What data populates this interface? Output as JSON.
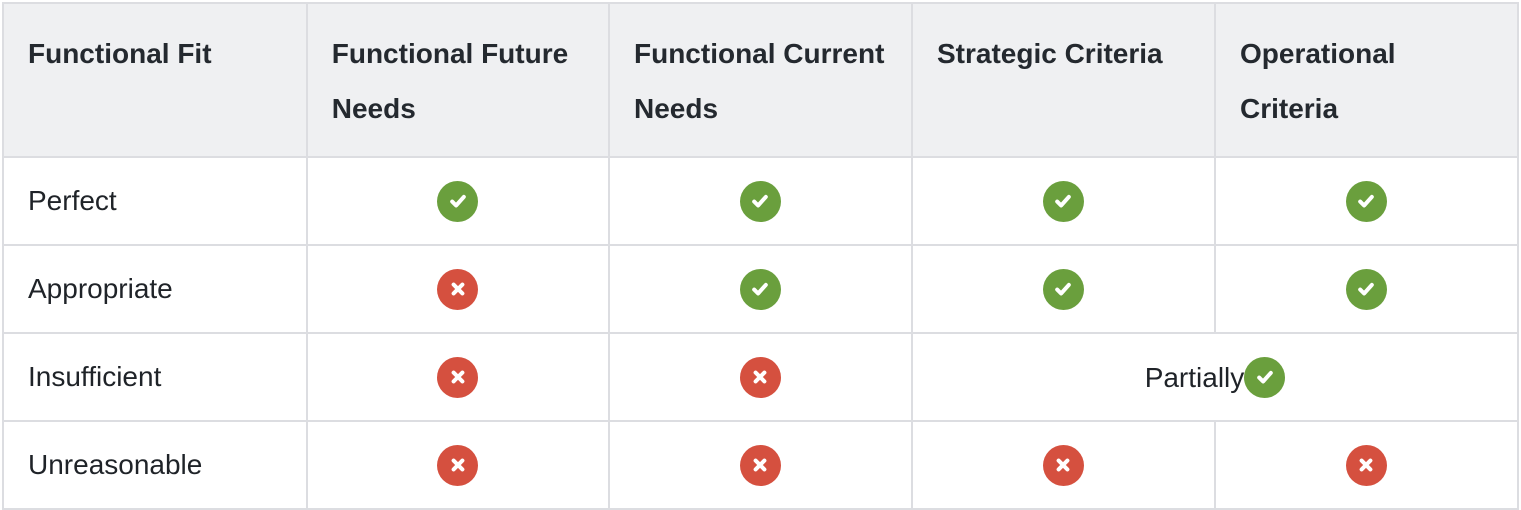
{
  "table": {
    "columns": [
      {
        "label": "Functional Fit"
      },
      {
        "label": "Functional Future Needs"
      },
      {
        "label": "Functional Current Needs"
      },
      {
        "label": "Strategic Criteria"
      },
      {
        "label": "Operational Criteria"
      }
    ],
    "rows": [
      {
        "label": "Perfect",
        "cells": [
          {
            "icon": "check"
          },
          {
            "icon": "check"
          },
          {
            "icon": "check"
          },
          {
            "icon": "check"
          }
        ]
      },
      {
        "label": "Appropriate",
        "cells": [
          {
            "icon": "cross"
          },
          {
            "icon": "check"
          },
          {
            "icon": "check"
          },
          {
            "icon": "check"
          }
        ]
      },
      {
        "label": "Insufficient",
        "cells": [
          {
            "icon": "cross"
          },
          {
            "icon": "cross"
          },
          {
            "icon": "check",
            "text": "Partially",
            "colspan": 2
          }
        ]
      },
      {
        "label": "Unreasonable",
        "cells": [
          {
            "icon": "cross"
          },
          {
            "icon": "cross"
          },
          {
            "icon": "cross"
          },
          {
            "icon": "cross"
          }
        ]
      }
    ],
    "colors": {
      "check_green": "#6a9f3d",
      "cross_red": "#d5503f",
      "header_bg": "#eff0f2",
      "header_text": "#24292f",
      "border": "#dcdde1"
    }
  }
}
